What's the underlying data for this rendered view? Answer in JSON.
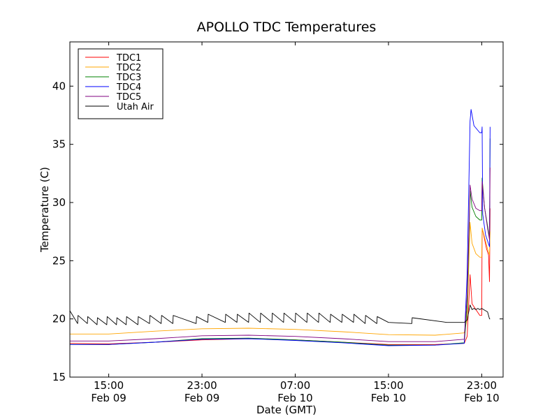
{
  "chart_data": {
    "type": "line",
    "title": "APOLLO TDC Temperatures",
    "xlabel": "Date (GMT)",
    "ylabel": "Temperature (C)",
    "ylim": [
      15,
      43.8
    ],
    "xlim": [
      "2014-02-09T11:40",
      "2014-02-11T00:50"
    ],
    "grid": false,
    "legend_position": "top-left",
    "yticks": [
      15,
      20,
      25,
      30,
      35,
      40
    ],
    "xticks": [
      {
        "value": "2014-02-09T15:00",
        "line1": "15:00",
        "line2": "Feb 09"
      },
      {
        "value": "2014-02-09T23:00",
        "line1": "23:00",
        "line2": "Feb 09"
      },
      {
        "value": "2014-02-10T07:00",
        "line1": "07:00",
        "line2": "Feb 10"
      },
      {
        "value": "2014-02-10T15:00",
        "line1": "15:00",
        "line2": "Feb 10"
      },
      {
        "value": "2014-02-10T23:00",
        "line1": "23:00",
        "line2": "Feb 10"
      }
    ],
    "series": [
      {
        "name": "TDC1",
        "color": "#ff0000",
        "points": [
          [
            "2014-02-09T11:40",
            17.9
          ],
          [
            "2014-02-09T15:00",
            17.85
          ],
          [
            "2014-02-09T19:00",
            18.0
          ],
          [
            "2014-02-09T23:00",
            18.2
          ],
          [
            "2014-02-10T03:00",
            18.3
          ],
          [
            "2014-02-10T07:00",
            18.2
          ],
          [
            "2014-02-10T11:00",
            18.0
          ],
          [
            "2014-02-10T15:00",
            17.8
          ],
          [
            "2014-02-10T19:00",
            17.8
          ],
          [
            "2014-02-10T21:30",
            17.9
          ],
          [
            "2014-02-10T21:45",
            18.5
          ],
          [
            "2014-02-10T22:00",
            23.8
          ],
          [
            "2014-02-10T22:10",
            21.3
          ],
          [
            "2014-02-10T22:30",
            20.8
          ],
          [
            "2014-02-10T22:50",
            20.3
          ],
          [
            "2014-02-10T23:00",
            20.3
          ],
          [
            "2014-02-10T23:02",
            27.8
          ],
          [
            "2014-02-10T23:10",
            27.2
          ],
          [
            "2014-02-10T23:25",
            26.0
          ],
          [
            "2014-02-10T23:35",
            25.5
          ],
          [
            "2014-02-10T23:40",
            23.2
          ],
          [
            "2014-02-10T23:43",
            29.5
          ]
        ]
      },
      {
        "name": "TDC2",
        "color": "#ffa500",
        "points": [
          [
            "2014-02-09T11:40",
            18.7
          ],
          [
            "2014-02-09T15:00",
            18.7
          ],
          [
            "2014-02-09T19:00",
            18.95
          ],
          [
            "2014-02-09T23:00",
            19.15
          ],
          [
            "2014-02-10T03:00",
            19.2
          ],
          [
            "2014-02-10T07:00",
            19.1
          ],
          [
            "2014-02-10T11:00",
            18.9
          ],
          [
            "2014-02-10T15:00",
            18.65
          ],
          [
            "2014-02-10T19:00",
            18.6
          ],
          [
            "2014-02-10T21:30",
            18.8
          ],
          [
            "2014-02-10T21:45",
            20.0
          ],
          [
            "2014-02-10T22:00",
            28.3
          ],
          [
            "2014-02-10T22:10",
            26.5
          ],
          [
            "2014-02-10T22:30",
            25.6
          ],
          [
            "2014-02-10T22:50",
            25.3
          ],
          [
            "2014-02-10T23:00",
            25.3
          ],
          [
            "2014-02-10T23:02",
            27.8
          ],
          [
            "2014-02-10T23:15",
            27.0
          ],
          [
            "2014-02-10T23:30",
            26.0
          ],
          [
            "2014-02-10T23:40",
            25.5
          ],
          [
            "2014-02-10T23:43",
            27.5
          ]
        ]
      },
      {
        "name": "TDC3",
        "color": "#008000",
        "points": [
          [
            "2014-02-09T11:40",
            17.8
          ],
          [
            "2014-02-09T15:00",
            17.8
          ],
          [
            "2014-02-09T19:00",
            18.0
          ],
          [
            "2014-02-09T23:00",
            18.3
          ],
          [
            "2014-02-10T03:00",
            18.35
          ],
          [
            "2014-02-10T07:00",
            18.2
          ],
          [
            "2014-02-10T11:00",
            18.0
          ],
          [
            "2014-02-10T15:00",
            17.75
          ],
          [
            "2014-02-10T19:00",
            17.75
          ],
          [
            "2014-02-10T21:30",
            17.95
          ],
          [
            "2014-02-10T21:45",
            21.0
          ],
          [
            "2014-02-10T22:00",
            31.0
          ],
          [
            "2014-02-10T22:10",
            29.6
          ],
          [
            "2014-02-10T22:30",
            28.8
          ],
          [
            "2014-02-10T22:50",
            28.5
          ],
          [
            "2014-02-10T23:00",
            28.5
          ],
          [
            "2014-02-10T23:02",
            32.1
          ],
          [
            "2014-02-10T23:15",
            29.5
          ],
          [
            "2014-02-10T23:30",
            28.0
          ],
          [
            "2014-02-10T23:40",
            27.0
          ],
          [
            "2014-02-10T23:43",
            35.5
          ]
        ]
      },
      {
        "name": "TDC4",
        "color": "#0000ff",
        "points": [
          [
            "2014-02-09T11:40",
            17.8
          ],
          [
            "2014-02-09T15:00",
            17.8
          ],
          [
            "2014-02-09T19:00",
            18.0
          ],
          [
            "2014-02-09T23:00",
            18.25
          ],
          [
            "2014-02-10T03:00",
            18.3
          ],
          [
            "2014-02-10T07:00",
            18.15
          ],
          [
            "2014-02-10T11:00",
            17.95
          ],
          [
            "2014-02-10T15:00",
            17.7
          ],
          [
            "2014-02-10T19:00",
            17.75
          ],
          [
            "2014-02-10T21:30",
            17.9
          ],
          [
            "2014-02-10T21:45",
            24.0
          ],
          [
            "2014-02-10T22:00",
            37.0
          ],
          [
            "2014-02-10T22:05",
            38.0
          ],
          [
            "2014-02-10T22:20",
            36.6
          ],
          [
            "2014-02-10T22:50",
            36.0
          ],
          [
            "2014-02-10T23:00",
            36.0
          ],
          [
            "2014-02-10T23:02",
            36.5
          ],
          [
            "2014-02-10T23:05",
            29.0
          ],
          [
            "2014-02-10T23:20",
            27.2
          ],
          [
            "2014-02-10T23:40",
            26.2
          ],
          [
            "2014-02-10T23:43",
            36.5
          ]
        ]
      },
      {
        "name": "TDC5",
        "color": "#800080",
        "points": [
          [
            "2014-02-09T11:40",
            18.1
          ],
          [
            "2014-02-09T15:00",
            18.1
          ],
          [
            "2014-02-09T19:00",
            18.3
          ],
          [
            "2014-02-09T23:00",
            18.55
          ],
          [
            "2014-02-10T03:00",
            18.6
          ],
          [
            "2014-02-10T07:00",
            18.5
          ],
          [
            "2014-02-10T11:00",
            18.3
          ],
          [
            "2014-02-10T15:00",
            18.05
          ],
          [
            "2014-02-10T19:00",
            18.05
          ],
          [
            "2014-02-10T21:30",
            18.25
          ],
          [
            "2014-02-10T21:45",
            22.0
          ],
          [
            "2014-02-10T22:00",
            31.5
          ],
          [
            "2014-02-10T22:10",
            30.3
          ],
          [
            "2014-02-10T22:30",
            29.5
          ],
          [
            "2014-02-10T22:50",
            29.3
          ],
          [
            "2014-02-10T23:00",
            29.3
          ],
          [
            "2014-02-10T23:02",
            31.8
          ],
          [
            "2014-02-10T23:15",
            29.5
          ],
          [
            "2014-02-10T23:30",
            27.8
          ],
          [
            "2014-02-10T23:40",
            26.8
          ],
          [
            "2014-02-10T23:43",
            33.0
          ]
        ]
      },
      {
        "name": "Utah Air",
        "color": "#000000",
        "points": [
          [
            "2014-02-09T11:40",
            20.7
          ],
          [
            "2014-02-09T12:20",
            19.6
          ],
          [
            "2014-02-09T12:22",
            20.3
          ],
          [
            "2014-02-09T13:10",
            19.6
          ],
          [
            "2014-02-09T13:12",
            20.2
          ],
          [
            "2014-02-09T14:00",
            19.5
          ],
          [
            "2014-02-09T14:02",
            20.1
          ],
          [
            "2014-02-09T14:50",
            19.5
          ],
          [
            "2014-02-09T14:52",
            20.2
          ],
          [
            "2014-02-09T15:40",
            19.5
          ],
          [
            "2014-02-09T15:42",
            20.1
          ],
          [
            "2014-02-09T16:30",
            19.5
          ],
          [
            "2014-02-09T16:32",
            20.2
          ],
          [
            "2014-02-09T17:30",
            19.5
          ],
          [
            "2014-02-09T17:32",
            20.2
          ],
          [
            "2014-02-09T18:30",
            19.6
          ],
          [
            "2014-02-09T18:32",
            20.3
          ],
          [
            "2014-02-09T19:30",
            19.6
          ],
          [
            "2014-02-09T19:32",
            20.3
          ],
          [
            "2014-02-09T20:30",
            19.6
          ],
          [
            "2014-02-09T20:32",
            20.3
          ],
          [
            "2014-02-09T22:30",
            19.6
          ],
          [
            "2014-02-09T22:32",
            20.2
          ],
          [
            "2014-02-09T23:30",
            19.7
          ],
          [
            "2014-02-09T23:32",
            20.4
          ],
          [
            "2014-02-10T01:00",
            19.7
          ],
          [
            "2014-02-10T01:02",
            20.4
          ],
          [
            "2014-02-10T02:00",
            19.7
          ],
          [
            "2014-02-10T02:02",
            20.4
          ],
          [
            "2014-02-10T03:00",
            19.7
          ],
          [
            "2014-02-10T03:02",
            20.5
          ],
          [
            "2014-02-10T04:00",
            19.7
          ],
          [
            "2014-02-10T04:02",
            20.5
          ],
          [
            "2014-02-10T05:00",
            19.7
          ],
          [
            "2014-02-10T05:02",
            20.5
          ],
          [
            "2014-02-10T06:00",
            19.7
          ],
          [
            "2014-02-10T06:02",
            20.5
          ],
          [
            "2014-02-10T07:00",
            19.7
          ],
          [
            "2014-02-10T07:02",
            20.5
          ],
          [
            "2014-02-10T08:00",
            19.7
          ],
          [
            "2014-02-10T08:02",
            20.5
          ],
          [
            "2014-02-10T09:00",
            19.7
          ],
          [
            "2014-02-10T09:02",
            20.5
          ],
          [
            "2014-02-10T10:00",
            19.7
          ],
          [
            "2014-02-10T10:02",
            20.4
          ],
          [
            "2014-02-10T11:00",
            19.7
          ],
          [
            "2014-02-10T11:02",
            20.4
          ],
          [
            "2014-02-10T12:00",
            19.7
          ],
          [
            "2014-02-10T12:02",
            20.4
          ],
          [
            "2014-02-10T13:00",
            19.6
          ],
          [
            "2014-02-10T13:02",
            20.3
          ],
          [
            "2014-02-10T14:00",
            19.6
          ],
          [
            "2014-02-10T14:02",
            20.2
          ],
          [
            "2014-02-10T15:00",
            19.7
          ],
          [
            "2014-02-10T17:00",
            19.6
          ],
          [
            "2014-02-10T17:02",
            20.1
          ],
          [
            "2014-02-10T20:00",
            19.7
          ],
          [
            "2014-02-10T21:30",
            19.7
          ],
          [
            "2014-02-10T21:45",
            19.9
          ],
          [
            "2014-02-10T22:00",
            21.2
          ],
          [
            "2014-02-10T22:10",
            20.8
          ],
          [
            "2014-02-10T22:20",
            20.9
          ],
          [
            "2014-02-10T22:30",
            20.8
          ],
          [
            "2014-02-10T22:40",
            20.9
          ],
          [
            "2014-02-10T22:50",
            20.8
          ],
          [
            "2014-02-10T23:00",
            20.9
          ],
          [
            "2014-02-10T23:10",
            20.8
          ],
          [
            "2014-02-10T23:20",
            20.7
          ],
          [
            "2014-02-10T23:30",
            20.6
          ],
          [
            "2014-02-10T23:40",
            20.0
          ],
          [
            "2014-02-10T23:43",
            20.0
          ]
        ]
      }
    ]
  }
}
